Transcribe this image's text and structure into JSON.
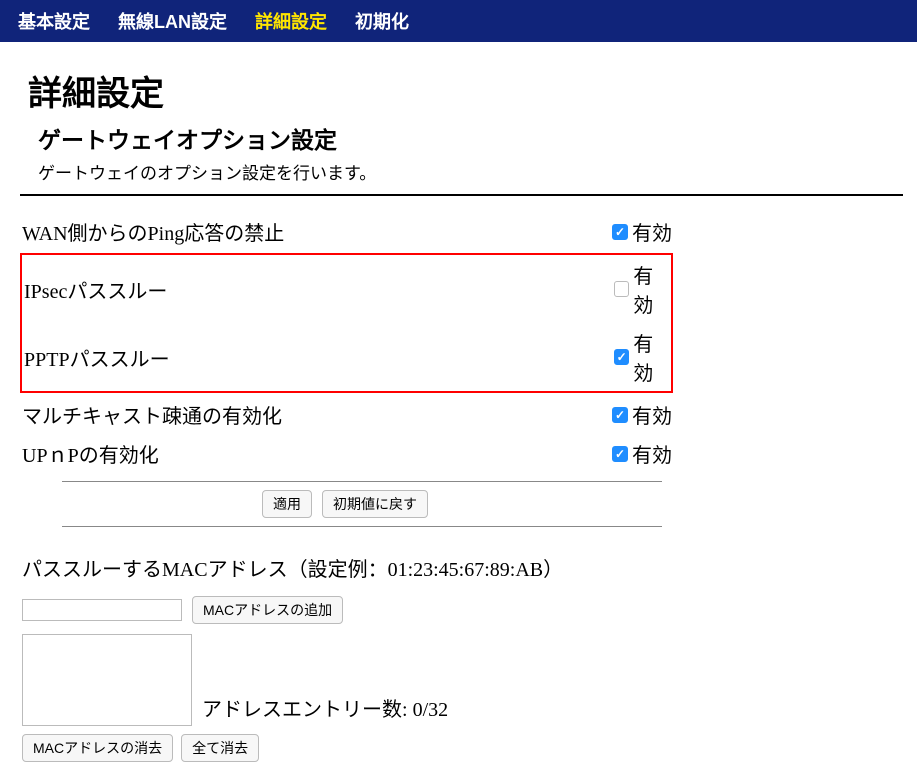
{
  "nav": {
    "items": [
      {
        "label": "基本設定",
        "active": false
      },
      {
        "label": "無線LAN設定",
        "active": false
      },
      {
        "label": "詳細設定",
        "active": true
      },
      {
        "label": "初期化",
        "active": false
      }
    ]
  },
  "page": {
    "title": "詳細設定",
    "section_title": "ゲートウェイオプション設定",
    "section_desc": "ゲートウェイのオプション設定を行います。"
  },
  "options": [
    {
      "label": "WAN側からのPing応答の禁止",
      "check_label": "有効",
      "checked": true,
      "highlight": false
    },
    {
      "label": "IPsecパススルー",
      "check_label": "有効",
      "checked": false,
      "highlight": true
    },
    {
      "label": "PPTPパススルー",
      "check_label": "有効",
      "checked": true,
      "highlight": true
    },
    {
      "label": "マルチキャスト疎通の有効化",
      "check_label": "有効",
      "checked": true,
      "highlight": false
    },
    {
      "label": "UPｎPの有効化",
      "check_label": "有効",
      "checked": true,
      "highlight": false
    }
  ],
  "buttons": {
    "apply": "適用",
    "reset_default": "初期値に戻す"
  },
  "mac": {
    "title": "パススルーするMACアドレス（設定例：01:23:45:67:89:AB）",
    "add_button": "MACアドレスの追加",
    "count_label_prefix": "アドレスエントリー数: ",
    "count_value": "0/32",
    "delete_button": "MACアドレスの消去",
    "delete_all_button": "全て消去",
    "input_value": ""
  },
  "style": {
    "navbar_bg": "#10247a",
    "navbar_text": "#ffffff",
    "navbar_active": "#ffe600",
    "highlight_border": "#ff0000",
    "checkbox_checked_bg": "#1f8dff"
  }
}
